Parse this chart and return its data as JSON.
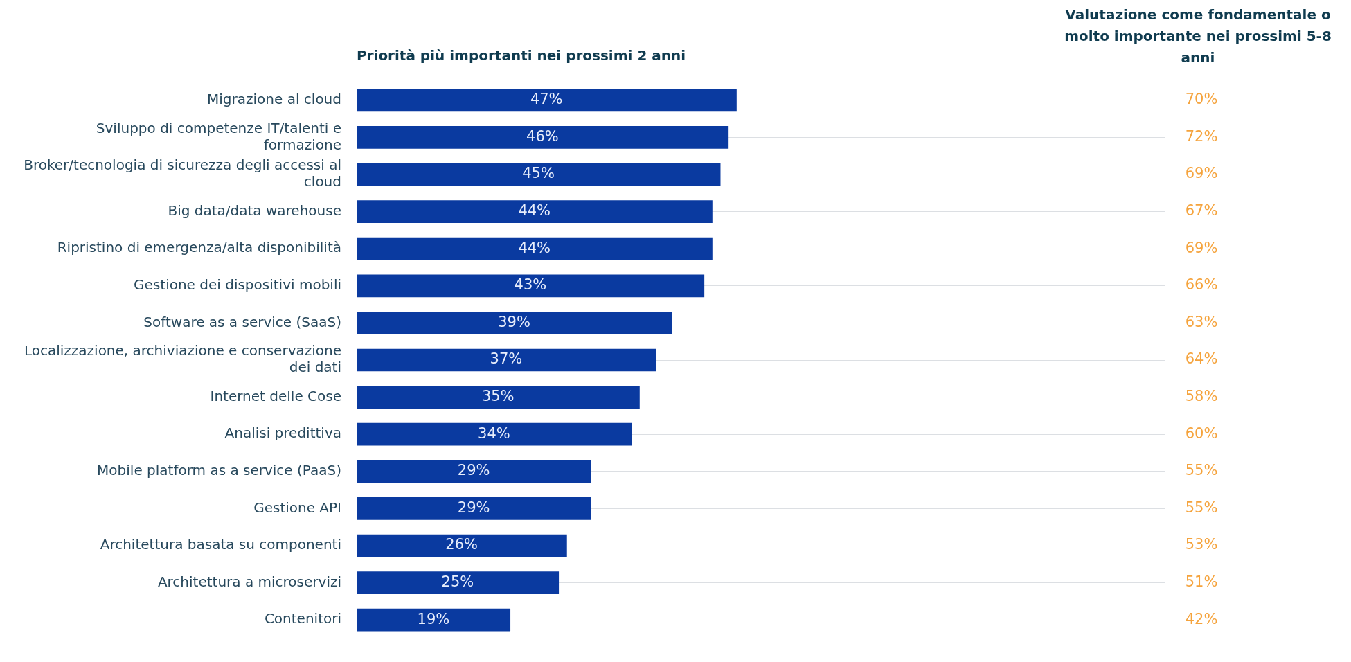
{
  "chart_data": [
    {
      "type": "bar",
      "orientation": "horizontal",
      "title": "Priorità più importanti nei prossimi 2 anni",
      "categories": [
        "Migrazione al cloud",
        "Sviluppo di competenze IT/talenti e formazione",
        "Broker/tecnologia di sicurezza degli accessi al cloud",
        "Big data/data warehouse",
        "Ripristino di emergenza/alta disponibilità",
        "Gestione dei dispositivi mobili",
        "Software as a service (SaaS)",
        "Localizzazione, archiviazione e conservazione dei dati",
        "Internet delle Cose",
        "Analisi predittiva",
        "Mobile platform as a service (PaaS)",
        "Gestione API",
        "Architettura basata su componenti",
        "Architettura a microservizi",
        "Contenitori"
      ],
      "values": [
        47,
        46,
        45,
        44,
        44,
        43,
        39,
        37,
        35,
        34,
        29,
        29,
        26,
        25,
        19
      ],
      "value_labels": [
        "47%",
        "46%",
        "45%",
        "44%",
        "44%",
        "43%",
        "39%",
        "37%",
        "35%",
        "34%",
        "29%",
        "29%",
        "26%",
        "25%",
        "19%"
      ],
      "color": "#0a3aa0",
      "xlim": [
        0,
        100
      ],
      "grid": "y",
      "tick_labels": "y"
    },
    {
      "type": "other",
      "title": "Valutazione come fondamentale o molto importante nei prossimi 5-8 anni",
      "categories": [
        null,
        null,
        null,
        null,
        null,
        null,
        null,
        null,
        null,
        null,
        null,
        null,
        null,
        null,
        null
      ],
      "values": [
        70,
        72,
        69,
        67,
        69,
        66,
        63,
        64,
        58,
        60,
        55,
        55,
        53,
        51,
        42
      ],
      "value_labels": [
        "70%",
        "72%",
        "69%",
        "67%",
        "69%",
        "66%",
        "63%",
        "64%",
        "58%",
        "60%",
        "55%",
        "55%",
        "53%",
        "51%",
        "42%"
      ],
      "color": "#f5a33c"
    }
  ]
}
